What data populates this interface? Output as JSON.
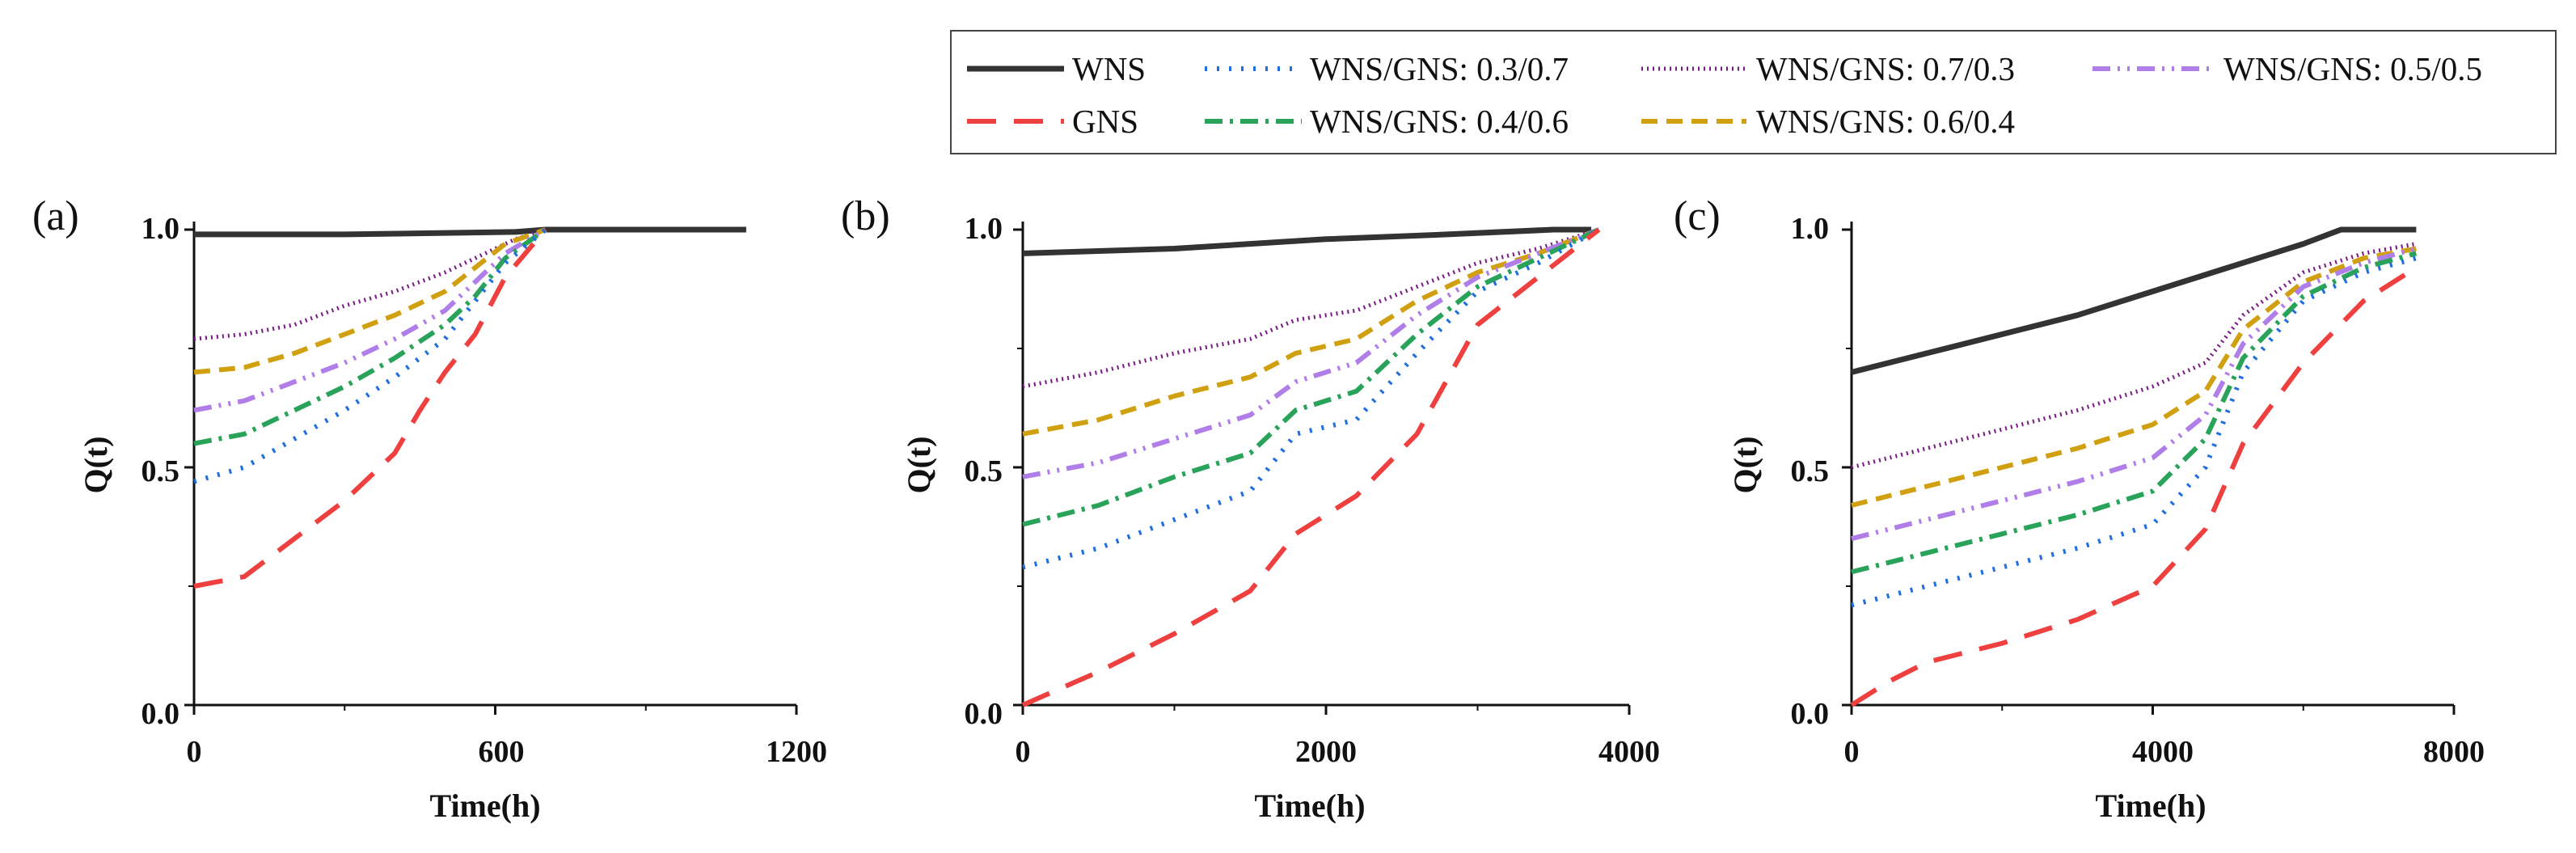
{
  "legend": {
    "entries": [
      {
        "name": "WNS",
        "label": "WNS",
        "color": "#333333",
        "dash": "solid"
      },
      {
        "name": "mix37",
        "label": "WNS/GNS: 0.3/0.7",
        "color": "#1f6fe0",
        "dash": "dot"
      },
      {
        "name": "mix73",
        "label": "WNS/GNS: 0.7/0.3",
        "color": "#7a1a86",
        "dash": "fine-dot"
      },
      {
        "name": "mix55",
        "label": "WNS/GNS: 0.5/0.5",
        "color": "#b07ee8",
        "dash": "dash-dot-dot"
      },
      {
        "name": "GNS",
        "label": "GNS",
        "color": "#ef4040",
        "dash": "long-dash"
      },
      {
        "name": "mix46",
        "label": "WNS/GNS: 0.4/0.6",
        "color": "#2aa35a",
        "dash": "dash-dot"
      },
      {
        "name": "mix64",
        "label": "WNS/GNS: 0.6/0.4",
        "color": "#d0a010",
        "dash": "dash"
      }
    ]
  },
  "chart_data": [
    {
      "type": "line",
      "panel_label": "(a)",
      "xlabel": "Time(h)",
      "ylabel": "Q(t)",
      "xlim": [
        0,
        1200
      ],
      "ylim": [
        0,
        1
      ],
      "xticks": [
        0,
        600,
        1200
      ],
      "yticks": [
        "0.0",
        "0.5",
        "1.0"
      ],
      "series": [
        {
          "name": "WNS",
          "x": [
            0,
            300,
            640,
            700,
            1000,
            1100
          ],
          "y": [
            0.99,
            0.99,
            0.995,
            1.0,
            1.0,
            1.0
          ]
        },
        {
          "name": "mix73",
          "x": [
            0,
            100,
            200,
            300,
            400,
            500,
            580,
            640,
            700
          ],
          "y": [
            0.77,
            0.78,
            0.8,
            0.84,
            0.87,
            0.91,
            0.95,
            0.98,
            1.0
          ]
        },
        {
          "name": "mix64",
          "x": [
            0,
            100,
            200,
            300,
            400,
            500,
            560,
            620,
            700
          ],
          "y": [
            0.7,
            0.71,
            0.74,
            0.78,
            0.82,
            0.87,
            0.92,
            0.97,
            1.0
          ]
        },
        {
          "name": "mix55",
          "x": [
            0,
            100,
            200,
            300,
            400,
            500,
            560,
            620,
            700
          ],
          "y": [
            0.62,
            0.64,
            0.68,
            0.72,
            0.77,
            0.83,
            0.89,
            0.95,
            1.0
          ]
        },
        {
          "name": "mix46",
          "x": [
            0,
            100,
            200,
            300,
            400,
            500,
            560,
            620,
            700
          ],
          "y": [
            0.55,
            0.57,
            0.62,
            0.67,
            0.73,
            0.8,
            0.86,
            0.94,
            1.0
          ]
        },
        {
          "name": "mix37",
          "x": [
            0,
            100,
            200,
            300,
            400,
            500,
            560,
            620,
            700
          ],
          "y": [
            0.47,
            0.5,
            0.56,
            0.62,
            0.69,
            0.77,
            0.85,
            0.93,
            1.0
          ]
        },
        {
          "name": "GNS",
          "x": [
            0,
            100,
            200,
            300,
            400,
            450,
            500,
            560,
            620,
            700
          ],
          "y": [
            0.25,
            0.27,
            0.35,
            0.43,
            0.53,
            0.62,
            0.7,
            0.78,
            0.9,
            1.0
          ]
        }
      ]
    },
    {
      "type": "line",
      "panel_label": "(b)",
      "xlabel": "Time(h)",
      "ylabel": "Q(t)",
      "xlim": [
        0,
        4000
      ],
      "ylim": [
        0,
        1
      ],
      "xticks": [
        0,
        2000,
        4000
      ],
      "yticks": [
        "0.0",
        "0.5",
        "1.0"
      ],
      "series": [
        {
          "name": "WNS",
          "x": [
            0,
            1000,
            2000,
            2800,
            3500,
            3750
          ],
          "y": [
            0.95,
            0.96,
            0.98,
            0.99,
            1.0,
            1.0
          ]
        },
        {
          "name": "mix73",
          "x": [
            0,
            500,
            1000,
            1500,
            1800,
            2200,
            2600,
            3000,
            3400,
            3800
          ],
          "y": [
            0.67,
            0.7,
            0.74,
            0.77,
            0.81,
            0.83,
            0.88,
            0.93,
            0.96,
            1.0
          ]
        },
        {
          "name": "mix64",
          "x": [
            0,
            500,
            1000,
            1500,
            1800,
            2200,
            2600,
            3000,
            3400,
            3800
          ],
          "y": [
            0.57,
            0.6,
            0.65,
            0.69,
            0.74,
            0.77,
            0.85,
            0.91,
            0.95,
            1.0
          ]
        },
        {
          "name": "mix55",
          "x": [
            0,
            500,
            1000,
            1500,
            1800,
            2200,
            2600,
            3000,
            3400,
            3800
          ],
          "y": [
            0.48,
            0.51,
            0.56,
            0.61,
            0.68,
            0.72,
            0.82,
            0.9,
            0.95,
            1.0
          ]
        },
        {
          "name": "mix46",
          "x": [
            0,
            500,
            1000,
            1500,
            1800,
            2200,
            2600,
            3000,
            3400,
            3800
          ],
          "y": [
            0.38,
            0.42,
            0.48,
            0.53,
            0.62,
            0.66,
            0.78,
            0.88,
            0.94,
            1.0
          ]
        },
        {
          "name": "mix37",
          "x": [
            0,
            500,
            1000,
            1500,
            1800,
            2200,
            2600,
            3000,
            3400,
            3800
          ],
          "y": [
            0.29,
            0.33,
            0.39,
            0.45,
            0.57,
            0.6,
            0.74,
            0.87,
            0.93,
            1.0
          ]
        },
        {
          "name": "GNS",
          "x": [
            0,
            500,
            1000,
            1500,
            1800,
            2200,
            2600,
            3000,
            3400,
            3800
          ],
          "y": [
            0.0,
            0.07,
            0.15,
            0.24,
            0.36,
            0.44,
            0.57,
            0.8,
            0.9,
            1.0
          ]
        }
      ]
    },
    {
      "type": "line",
      "panel_label": "(c)",
      "xlabel": "Time(h)",
      "ylabel": "Q(t)",
      "xlim": [
        0,
        8000
      ],
      "ylim": [
        0,
        1
      ],
      "xticks": [
        0,
        4000,
        8000
      ],
      "yticks": [
        "0.0",
        "0.5",
        "1.0"
      ],
      "series": [
        {
          "name": "WNS",
          "x": [
            0,
            1000,
            2000,
            3000,
            4000,
            5000,
            6000,
            6500,
            7500
          ],
          "y": [
            0.7,
            0.74,
            0.78,
            0.82,
            0.87,
            0.92,
            0.97,
            1.0,
            1.0
          ]
        },
        {
          "name": "mix73",
          "x": [
            0,
            1000,
            2000,
            3000,
            4000,
            4700,
            5200,
            6000,
            6800,
            7500
          ],
          "y": [
            0.5,
            0.54,
            0.58,
            0.62,
            0.67,
            0.72,
            0.82,
            0.91,
            0.95,
            0.97
          ]
        },
        {
          "name": "mix64",
          "x": [
            0,
            1000,
            2000,
            3000,
            4000,
            4700,
            5200,
            6000,
            6800,
            7500
          ],
          "y": [
            0.42,
            0.46,
            0.5,
            0.54,
            0.59,
            0.66,
            0.79,
            0.89,
            0.94,
            0.96
          ]
        },
        {
          "name": "mix55",
          "x": [
            0,
            1000,
            2000,
            3000,
            4000,
            4700,
            5200,
            6000,
            6800,
            7500
          ],
          "y": [
            0.35,
            0.39,
            0.43,
            0.47,
            0.52,
            0.61,
            0.76,
            0.88,
            0.93,
            0.96
          ]
        },
        {
          "name": "mix46",
          "x": [
            0,
            1000,
            2000,
            3000,
            4000,
            4700,
            5200,
            6000,
            6800,
            7500
          ],
          "y": [
            0.28,
            0.32,
            0.36,
            0.4,
            0.45,
            0.56,
            0.73,
            0.86,
            0.92,
            0.95
          ]
        },
        {
          "name": "mix37",
          "x": [
            0,
            1000,
            2000,
            3000,
            4000,
            4700,
            5200,
            6000,
            6800,
            7500
          ],
          "y": [
            0.21,
            0.25,
            0.29,
            0.33,
            0.38,
            0.5,
            0.7,
            0.85,
            0.91,
            0.94
          ]
        },
        {
          "name": "GNS",
          "x": [
            0,
            500,
            1000,
            2000,
            3000,
            4000,
            4700,
            5200,
            6000,
            6800,
            7500
          ],
          "y": [
            0.0,
            0.05,
            0.09,
            0.13,
            0.18,
            0.25,
            0.37,
            0.55,
            0.72,
            0.85,
            0.92
          ]
        }
      ]
    }
  ]
}
